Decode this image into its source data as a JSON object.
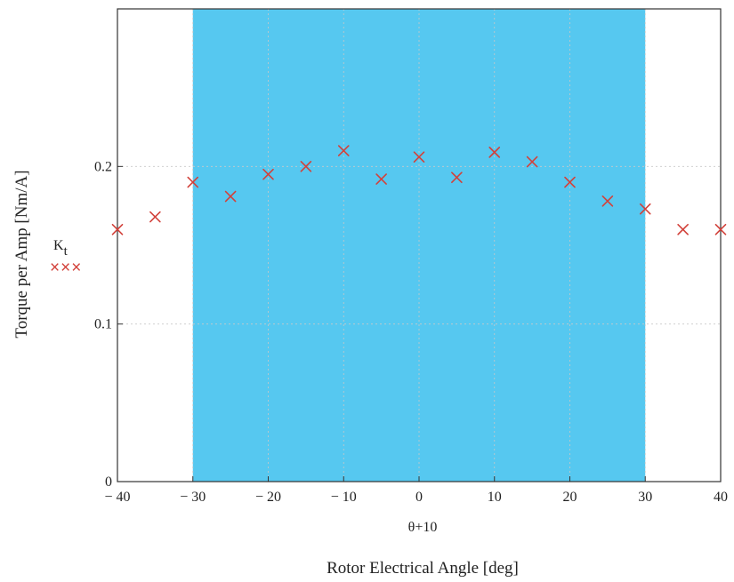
{
  "chart_data": {
    "type": "scatter",
    "title": "",
    "xlabel": "Rotor Electrical Angle [deg]",
    "x_sublabel": "θ+10",
    "ylabel": "Torque per Amp [Nm/A]",
    "xlim": [
      -40,
      40
    ],
    "ylim": [
      0,
      0.3
    ],
    "xticks": [
      -40,
      -30,
      -20,
      -10,
      0,
      10,
      20,
      30,
      40
    ],
    "xtick_labels": [
      "− 40",
      "− 30",
      "− 20",
      "− 10",
      "0",
      "10",
      "20",
      "30",
      "40"
    ],
    "yticks": [
      0,
      0.1,
      0.2
    ],
    "ytick_labels": [
      "0",
      "0.1",
      "0.2"
    ],
    "grid": true,
    "shaded_region": {
      "x": [
        -30,
        30
      ],
      "color": "#56c8f0"
    },
    "legend": {
      "placement": "left",
      "label_main": "K",
      "label_sub": "t",
      "symbol": "×××"
    },
    "series": [
      {
        "name": "Kt",
        "color": "#d2413a",
        "marker": "x",
        "x": [
          -40,
          -35,
          -30,
          -25,
          -20,
          -15,
          -10,
          -5,
          0,
          5,
          10,
          15,
          20,
          25,
          30,
          35,
          40
        ],
        "y": [
          0.16,
          0.168,
          0.19,
          0.181,
          0.195,
          0.2,
          0.21,
          0.192,
          0.206,
          0.193,
          0.209,
          0.203,
          0.19,
          0.178,
          0.173,
          0.16,
          0.16
        ]
      }
    ]
  }
}
